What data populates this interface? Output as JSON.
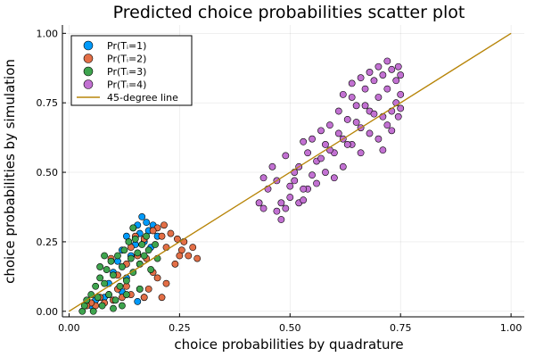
{
  "chart_data": {
    "type": "scatter",
    "title": "Predicted choice probabilities scatter plot",
    "xlabel": "choice probabilities by quadrature",
    "ylabel": "choice probabilities by simulation",
    "xlim": [
      -0.015,
      1.03
    ],
    "ylim": [
      -0.02,
      1.03
    ],
    "xticks": [
      0.0,
      0.25,
      0.5,
      0.75,
      1.0
    ],
    "xtick_labels": [
      "0.00",
      "0.25",
      "0.50",
      "0.75",
      "1.00"
    ],
    "yticks": [
      0.0,
      0.25,
      0.5,
      0.75,
      1.0
    ],
    "ytick_labels": [
      "0.00",
      "0.25",
      "0.50",
      "0.75",
      "1.00"
    ],
    "grid": true,
    "legend_position": "top-left",
    "series": [
      {
        "name": "Pr(Tᵢ=1)",
        "color": "#009AFA",
        "points": [
          [
            0.165,
            0.34
          ],
          [
            0.175,
            0.32
          ],
          [
            0.155,
            0.31
          ],
          [
            0.19,
            0.31
          ],
          [
            0.145,
            0.3
          ],
          [
            0.18,
            0.29
          ],
          [
            0.16,
            0.28
          ],
          [
            0.13,
            0.27
          ],
          [
            0.2,
            0.27
          ],
          [
            0.17,
            0.25
          ],
          [
            0.15,
            0.24
          ],
          [
            0.12,
            0.22
          ],
          [
            0.185,
            0.23
          ],
          [
            0.14,
            0.2
          ],
          [
            0.11,
            0.18
          ],
          [
            0.16,
            0.17
          ],
          [
            0.1,
            0.14
          ],
          [
            0.13,
            0.12
          ],
          [
            0.09,
            0.1
          ],
          [
            0.12,
            0.07
          ],
          [
            0.08,
            0.05
          ],
          [
            0.17,
            0.05
          ],
          [
            0.155,
            0.035
          ],
          [
            0.06,
            0.04
          ],
          [
            0.05,
            0.02
          ]
        ]
      },
      {
        "name": "Pr(Tᵢ=2)",
        "color": "#E36F47",
        "points": [
          [
            0.27,
            0.2
          ],
          [
            0.29,
            0.19
          ],
          [
            0.28,
            0.23
          ],
          [
            0.255,
            0.22
          ],
          [
            0.26,
            0.25
          ],
          [
            0.245,
            0.26
          ],
          [
            0.25,
            0.2
          ],
          [
            0.23,
            0.28
          ],
          [
            0.24,
            0.17
          ],
          [
            0.21,
            0.27
          ],
          [
            0.22,
            0.23
          ],
          [
            0.2,
            0.3
          ],
          [
            0.19,
            0.29
          ],
          [
            0.215,
            0.31
          ],
          [
            0.17,
            0.26
          ],
          [
            0.15,
            0.27
          ],
          [
            0.2,
            0.12
          ],
          [
            0.22,
            0.1
          ],
          [
            0.18,
            0.08
          ],
          [
            0.21,
            0.05
          ],
          [
            0.19,
            0.14
          ],
          [
            0.17,
            0.05
          ],
          [
            0.16,
            0.08
          ],
          [
            0.14,
            0.06
          ],
          [
            0.13,
            0.09
          ],
          [
            0.12,
            0.05
          ],
          [
            0.11,
            0.08
          ],
          [
            0.1,
            0.04
          ],
          [
            0.09,
            0.06
          ],
          [
            0.08,
            0.03
          ],
          [
            0.07,
            0.05
          ],
          [
            0.06,
            0.02
          ],
          [
            0.05,
            0.03
          ],
          [
            0.04,
            0.02
          ],
          [
            0.155,
            0.2
          ],
          [
            0.13,
            0.17
          ],
          [
            0.11,
            0.13
          ],
          [
            0.095,
            0.19
          ],
          [
            0.14,
            0.23
          ],
          [
            0.175,
            0.19
          ]
        ]
      },
      {
        "name": "Pr(Tᵢ=3)",
        "color": "#3EA44E",
        "points": [
          [
            0.03,
            0.0
          ],
          [
            0.035,
            0.02
          ],
          [
            0.04,
            0.04
          ],
          [
            0.05,
            0.06
          ],
          [
            0.055,
            0.0
          ],
          [
            0.06,
            0.09
          ],
          [
            0.065,
            0.05
          ],
          [
            0.07,
            0.12
          ],
          [
            0.075,
            0.02
          ],
          [
            0.08,
            0.1
          ],
          [
            0.085,
            0.15
          ],
          [
            0.09,
            0.06
          ],
          [
            0.095,
            0.18
          ],
          [
            0.1,
            0.13
          ],
          [
            0.105,
            0.04
          ],
          [
            0.11,
            0.2
          ],
          [
            0.115,
            0.09
          ],
          [
            0.12,
            0.16
          ],
          [
            0.125,
            0.22
          ],
          [
            0.13,
            0.11
          ],
          [
            0.135,
            0.25
          ],
          [
            0.14,
            0.19
          ],
          [
            0.145,
            0.14
          ],
          [
            0.15,
            0.26
          ],
          [
            0.155,
            0.21
          ],
          [
            0.16,
            0.17
          ],
          [
            0.165,
            0.24
          ],
          [
            0.17,
            0.2
          ],
          [
            0.175,
            0.27
          ],
          [
            0.18,
            0.22
          ],
          [
            0.185,
            0.15
          ],
          [
            0.195,
            0.24
          ],
          [
            0.145,
            0.3
          ],
          [
            0.2,
            0.19
          ],
          [
            0.12,
            0.02
          ],
          [
            0.1,
            0.01
          ],
          [
            0.16,
            0.08
          ],
          [
            0.13,
            0.06
          ],
          [
            0.08,
            0.2
          ],
          [
            0.07,
            0.16
          ]
        ]
      },
      {
        "name": "Pr(Tᵢ=4)",
        "color": "#C271D2",
        "points": [
          [
            0.43,
            0.39
          ],
          [
            0.44,
            0.37
          ],
          [
            0.47,
            0.36
          ],
          [
            0.48,
            0.39
          ],
          [
            0.49,
            0.37
          ],
          [
            0.48,
            0.33
          ],
          [
            0.5,
            0.41
          ],
          [
            0.52,
            0.39
          ],
          [
            0.53,
            0.4
          ],
          [
            0.54,
            0.44
          ],
          [
            0.45,
            0.44
          ],
          [
            0.44,
            0.48
          ],
          [
            0.47,
            0.47
          ],
          [
            0.5,
            0.45
          ],
          [
            0.46,
            0.52
          ],
          [
            0.49,
            0.56
          ],
          [
            0.51,
            0.5
          ],
          [
            0.54,
            0.57
          ],
          [
            0.53,
            0.61
          ],
          [
            0.56,
            0.54
          ],
          [
            0.58,
            0.6
          ],
          [
            0.57,
            0.65
          ],
          [
            0.59,
            0.67
          ],
          [
            0.6,
            0.57
          ],
          [
            0.62,
            0.62
          ],
          [
            0.61,
            0.72
          ],
          [
            0.63,
            0.69
          ],
          [
            0.64,
            0.77
          ],
          [
            0.65,
            0.74
          ],
          [
            0.66,
            0.66
          ],
          [
            0.67,
            0.8
          ],
          [
            0.68,
            0.72
          ],
          [
            0.69,
            0.83
          ],
          [
            0.7,
            0.77
          ],
          [
            0.71,
            0.85
          ],
          [
            0.72,
            0.8
          ],
          [
            0.73,
            0.87
          ],
          [
            0.74,
            0.83
          ],
          [
            0.745,
            0.88
          ],
          [
            0.75,
            0.85
          ],
          [
            0.75,
            0.78
          ],
          [
            0.75,
            0.73
          ],
          [
            0.74,
            0.75
          ],
          [
            0.745,
            0.7
          ],
          [
            0.73,
            0.72
          ],
          [
            0.72,
            0.67
          ],
          [
            0.71,
            0.7
          ],
          [
            0.7,
            0.62
          ],
          [
            0.68,
            0.64
          ],
          [
            0.66,
            0.57
          ],
          [
            0.64,
            0.6
          ],
          [
            0.62,
            0.52
          ],
          [
            0.6,
            0.48
          ],
          [
            0.58,
            0.5
          ],
          [
            0.56,
            0.46
          ],
          [
            0.55,
            0.49
          ],
          [
            0.57,
            0.55
          ],
          [
            0.59,
            0.58
          ],
          [
            0.61,
            0.64
          ],
          [
            0.63,
            0.6
          ],
          [
            0.65,
            0.68
          ],
          [
            0.67,
            0.74
          ],
          [
            0.69,
            0.71
          ],
          [
            0.55,
            0.62
          ],
          [
            0.52,
            0.52
          ],
          [
            0.7,
            0.88
          ],
          [
            0.68,
            0.86
          ],
          [
            0.72,
            0.9
          ],
          [
            0.66,
            0.84
          ],
          [
            0.64,
            0.82
          ],
          [
            0.62,
            0.78
          ],
          [
            0.73,
            0.65
          ],
          [
            0.71,
            0.58
          ],
          [
            0.53,
            0.44
          ],
          [
            0.51,
            0.47
          ]
        ]
      },
      {
        "name": "45-degree line",
        "color": "#B8860B",
        "line": [
          [
            0.0,
            0.0
          ],
          [
            1.0,
            1.0
          ]
        ]
      }
    ]
  }
}
